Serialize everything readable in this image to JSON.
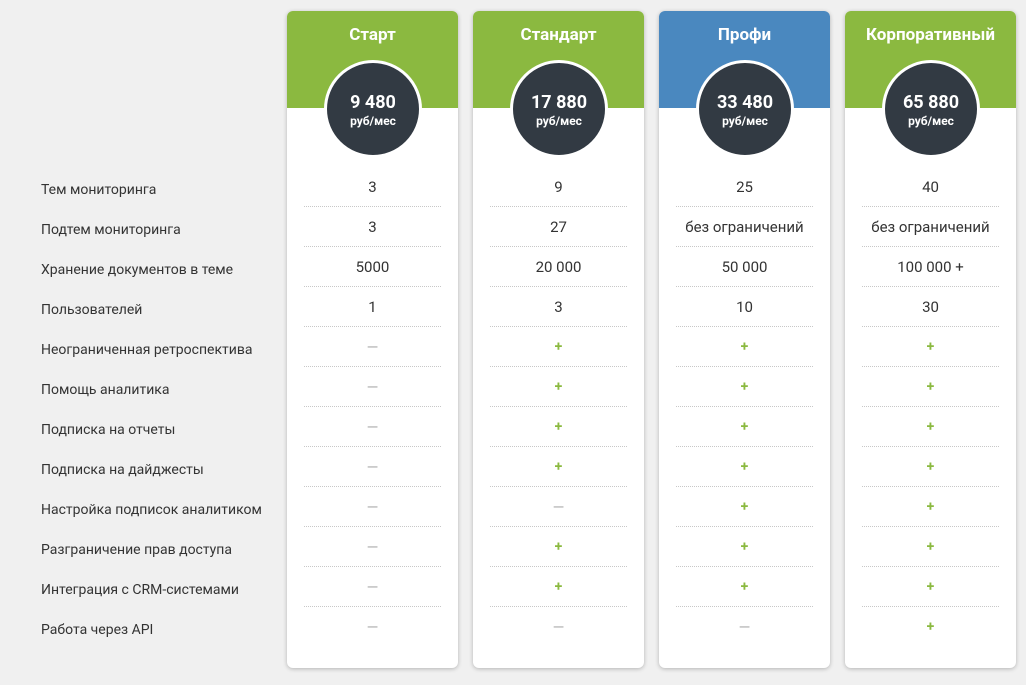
{
  "plans": [
    {
      "name": "Старт",
      "price": "9 480",
      "unit": "руб/мес",
      "color": "#8bb940"
    },
    {
      "name": "Стандарт",
      "price": "17 880",
      "unit": "руб/мес",
      "color": "#8bb940"
    },
    {
      "name": "Профи",
      "price": "33 480",
      "unit": "руб/мес",
      "color": "#4a88bf"
    },
    {
      "name": "Корпоративный",
      "price": "65 880",
      "unit": "руб/мес",
      "color": "#8bb940"
    }
  ],
  "features": [
    "Тем мониторинга",
    "Подтем мониторинга",
    "Хранение документов в теме",
    "Пользователей",
    "Неограниченная ретроспектива",
    "Помощь аналитика",
    "Подписка на отчеты",
    "Подписка на дайджесты",
    "Настройка подписок аналитиком",
    "Разграничение прав доступа",
    "Интеграция с CRM-системами",
    "Работа через API"
  ],
  "rows": [
    [
      "3",
      "9",
      "25",
      "40"
    ],
    [
      "3",
      "27",
      "без ограничений",
      "без ограничений"
    ],
    [
      "5000",
      "20 000",
      "50 000",
      "100 000 +"
    ],
    [
      "1",
      "3",
      "10",
      "30"
    ],
    [
      "—",
      "+",
      "+",
      "+"
    ],
    [
      "—",
      "+",
      "+",
      "+"
    ],
    [
      "—",
      "+",
      "+",
      "+"
    ],
    [
      "—",
      "+",
      "+",
      "+"
    ],
    [
      "—",
      "—",
      "+",
      "+"
    ],
    [
      "—",
      "+",
      "+",
      "+"
    ],
    [
      "—",
      "+",
      "+",
      "+"
    ],
    [
      "—",
      "—",
      "—",
      "+"
    ]
  ]
}
